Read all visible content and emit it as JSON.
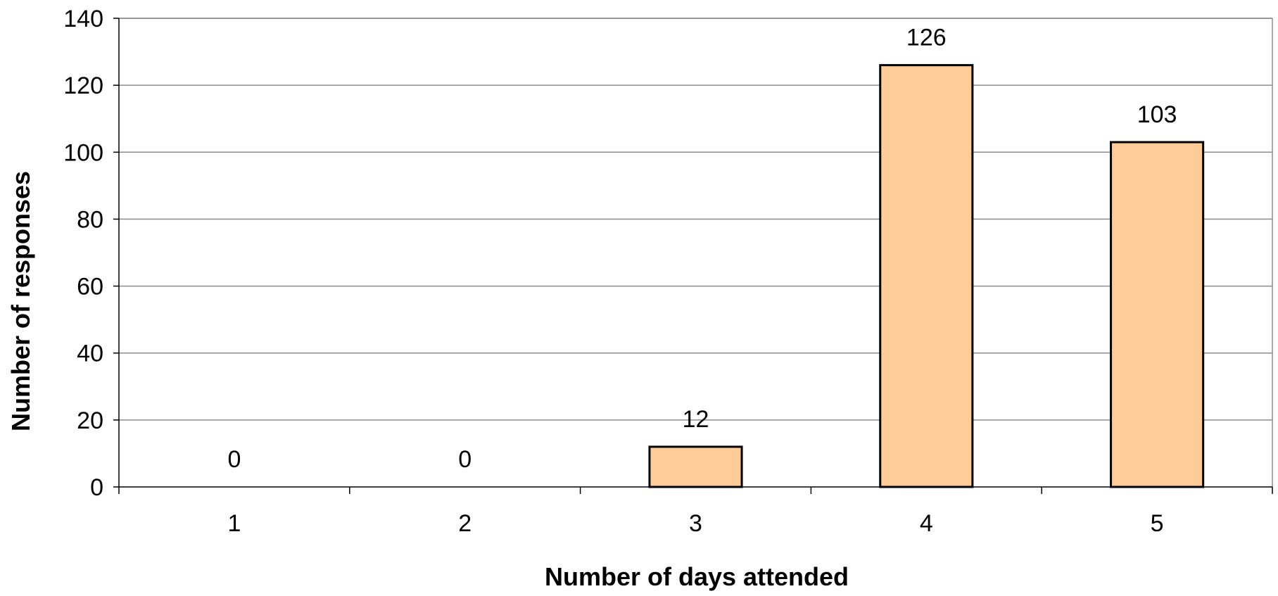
{
  "chart_data": {
    "type": "bar",
    "categories": [
      "1",
      "2",
      "3",
      "4",
      "5"
    ],
    "values": [
      0,
      0,
      12,
      126,
      103
    ],
    "data_labels": [
      "0",
      "0",
      "12",
      "126",
      "103"
    ],
    "title": "",
    "xlabel": "Number of days attended",
    "ylabel": "Number of responses",
    "ylim": [
      0,
      140
    ],
    "yticks": [
      0,
      20,
      40,
      60,
      80,
      100,
      120,
      140
    ],
    "ytick_labels": [
      "0",
      "20",
      "40",
      "60",
      "80",
      "100",
      "120",
      "140"
    ],
    "grid": true,
    "legend": "none",
    "colors": {
      "bar_fill": "#ffcc99",
      "bar_stroke": "#000000",
      "gridline": "#8c8c8c",
      "axis": "#000000"
    }
  }
}
